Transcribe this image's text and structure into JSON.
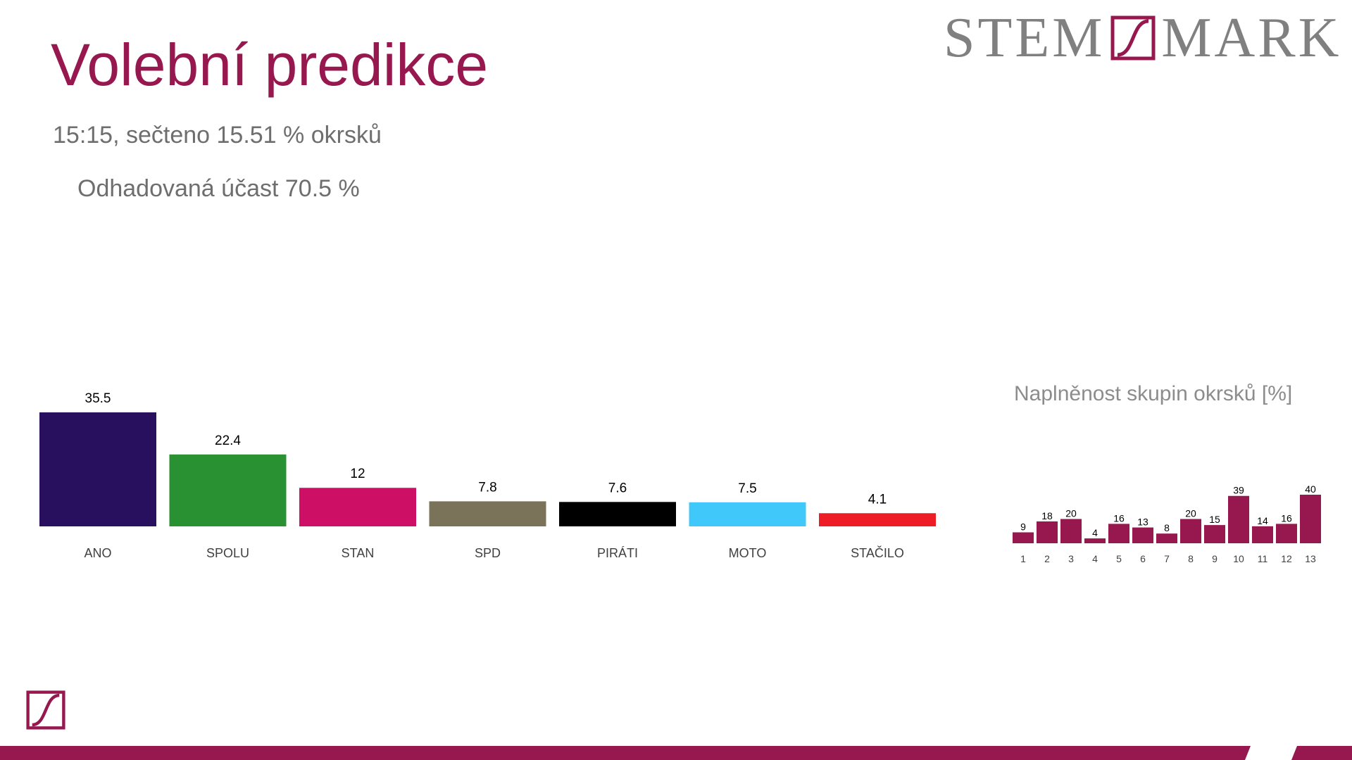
{
  "header": {
    "title": "Volební predikce",
    "subtitle": "15:15, sečteno 15.51 % okrsků",
    "turnout": "Odhadovaná účast 70.5 %"
  },
  "logo": {
    "left_word": "STEM",
    "right_word": "MARK",
    "brand_color": "#96184e",
    "icon": "stem-mark-logo-icon"
  },
  "chart_data": [
    {
      "type": "bar",
      "categories": [
        "ANO",
        "SPOLU",
        "STAN",
        "SPD",
        "PIRÁTI",
        "MOTO",
        "STAČILO"
      ],
      "values": [
        35.5,
        22.4,
        12,
        7.8,
        7.6,
        7.5,
        4.1
      ],
      "value_labels": [
        "35.5",
        "22.4",
        "12",
        "7.8",
        "7.6",
        "7.5",
        "4.1"
      ],
      "colors": [
        "#28105e",
        "#2a9133",
        "#cd0f66",
        "#7a7259",
        "#000000",
        "#40c8fb",
        "#ee1c25"
      ],
      "title": "",
      "xlabel": "",
      "ylabel": "",
      "ylim": [
        0,
        35.5
      ],
      "grid": false,
      "legend": "none"
    },
    {
      "type": "bar",
      "categories": [
        "1",
        "2",
        "3",
        "4",
        "5",
        "6",
        "7",
        "8",
        "9",
        "10",
        "11",
        "12",
        "13"
      ],
      "values": [
        9,
        18,
        20,
        4,
        16,
        13,
        8,
        20,
        15,
        39,
        14,
        16,
        40
      ],
      "value_labels": [
        "9",
        "18",
        "20",
        "4",
        "16",
        "13",
        "8",
        "20",
        "15",
        "39",
        "14",
        "16",
        "40"
      ],
      "color": "#96184e",
      "title": "Naplněnost skupin okrsků [%]",
      "xlabel": "",
      "ylabel": "",
      "ylim": [
        0,
        40
      ],
      "grid": false,
      "legend": "none"
    }
  ]
}
